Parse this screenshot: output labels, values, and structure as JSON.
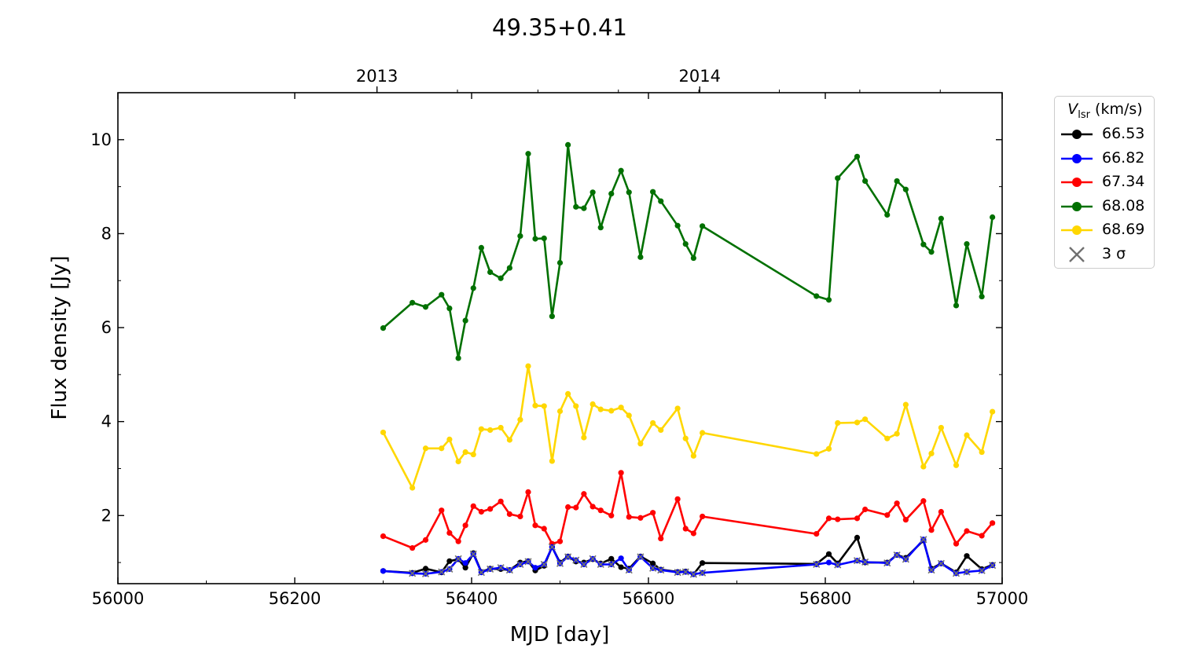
{
  "title": "49.35+0.41",
  "chart_data": {
    "type": "line",
    "title": "49.35+0.41",
    "xlabel": "MJD [day]",
    "ylabel": "Flux density [Jy]",
    "xlim": [
      56000,
      57000
    ],
    "ylim": [
      0.55,
      11.0
    ],
    "xticks": [
      56000,
      56200,
      56400,
      56600,
      56800,
      57000
    ],
    "yticks": [
      2,
      4,
      6,
      8,
      10
    ],
    "top_axis": {
      "ticks": [
        {
          "label": "2013",
          "mjd": 56293
        },
        {
          "label": "2014",
          "mjd": 56658
        }
      ]
    },
    "legend": {
      "title_main": "V",
      "title_sub": "lsr",
      "title_unit": " (km/s)",
      "position": "outside-right",
      "sigma_label": "3 σ"
    },
    "x": [
      56300,
      56333,
      56348,
      56366,
      56375,
      56385,
      56393,
      56402,
      56411,
      56421,
      56433,
      56443,
      56455,
      56464,
      56472,
      56482,
      56491,
      56500,
      56509,
      56518,
      56527,
      56537,
      56546,
      56558,
      56569,
      56578,
      56591,
      56605,
      56614,
      56633,
      56642,
      56651,
      56661,
      56790,
      56804,
      56814,
      56836,
      56845,
      56870,
      56881,
      56891,
      56911,
      56920,
      56931,
      56948,
      56960,
      56977,
      56989
    ],
    "series": [
      {
        "name": "66.53",
        "color": "#000000",
        "values": [
          0.82,
          0.78,
          0.87,
          0.79,
          1.03,
          1.07,
          0.89,
          1.2,
          0.8,
          0.87,
          0.86,
          0.84,
          1.0,
          1.03,
          0.83,
          0.93,
          1.33,
          1.0,
          1.13,
          1.02,
          1.0,
          1.07,
          0.98,
          1.08,
          0.9,
          0.87,
          1.13,
          0.98,
          0.85,
          0.8,
          0.81,
          0.75,
          0.99,
          0.97,
          1.18,
          0.98,
          1.53,
          1.0,
          1.0,
          1.16,
          1.1,
          1.47,
          0.87,
          0.98,
          0.79,
          1.14,
          0.86,
          0.95
        ]
      },
      {
        "name": "66.82",
        "color": "#0000ff",
        "values": [
          0.82,
          0.77,
          0.76,
          0.8,
          0.86,
          1.08,
          0.99,
          1.18,
          0.79,
          0.86,
          0.89,
          0.84,
          0.96,
          1.02,
          0.89,
          0.96,
          1.33,
          0.98,
          1.12,
          1.05,
          0.96,
          1.08,
          0.96,
          0.96,
          1.09,
          0.84,
          1.12,
          0.88,
          0.84,
          0.79,
          0.8,
          0.75,
          0.78,
          0.96,
          1.0,
          0.95,
          1.04,
          1.01,
          0.99,
          1.16,
          1.07,
          1.49,
          0.84,
          0.98,
          0.77,
          0.8,
          0.83,
          0.94
        ]
      },
      {
        "name": "67.34",
        "color": "#ff0000",
        "values": [
          1.56,
          1.31,
          1.48,
          2.11,
          1.63,
          1.45,
          1.79,
          2.2,
          2.08,
          2.14,
          2.3,
          2.03,
          1.98,
          2.5,
          1.79,
          1.72,
          1.4,
          1.45,
          2.18,
          2.17,
          2.46,
          2.19,
          2.11,
          2.0,
          2.91,
          1.97,
          1.95,
          2.06,
          1.51,
          2.35,
          1.72,
          1.62,
          1.98,
          1.61,
          1.94,
          1.92,
          1.94,
          2.13,
          2.01,
          2.26,
          1.91,
          2.31,
          1.69,
          2.08,
          1.4,
          1.67,
          1.57,
          1.84
        ]
      },
      {
        "name": "68.08",
        "color": "#007000",
        "values": [
          5.99,
          6.53,
          6.44,
          6.7,
          6.41,
          5.35,
          6.15,
          6.84,
          7.7,
          7.18,
          7.05,
          7.27,
          7.95,
          9.7,
          7.89,
          7.9,
          6.24,
          7.38,
          9.89,
          8.57,
          8.54,
          8.88,
          8.13,
          8.85,
          9.34,
          8.88,
          7.5,
          8.89,
          8.69,
          8.17,
          7.78,
          7.48,
          8.16,
          6.67,
          6.59,
          9.18,
          9.64,
          9.12,
          8.4,
          9.12,
          8.94,
          7.77,
          7.61,
          8.32,
          6.47,
          7.78,
          6.66,
          8.35
        ]
      },
      {
        "name": "68.69",
        "color": "#ffd700",
        "values": [
          3.77,
          2.59,
          3.43,
          3.43,
          3.62,
          3.15,
          3.35,
          3.3,
          3.84,
          3.82,
          3.87,
          3.61,
          4.04,
          5.18,
          4.34,
          4.33,
          3.16,
          4.22,
          4.59,
          4.33,
          3.66,
          4.37,
          4.26,
          4.23,
          4.3,
          4.13,
          3.53,
          3.97,
          3.82,
          4.28,
          3.64,
          3.27,
          3.76,
          3.31,
          3.42,
          3.97,
          3.98,
          4.05,
          3.64,
          3.74,
          4.36,
          3.04,
          3.32,
          3.87,
          3.07,
          3.71,
          3.35,
          4.21
        ]
      }
    ],
    "sigma_points": [
      {
        "x": 56333,
        "y": 0.77
      },
      {
        "x": 56348,
        "y": 0.76
      },
      {
        "x": 56366,
        "y": 0.8
      },
      {
        "x": 56375,
        "y": 0.86
      },
      {
        "x": 56385,
        "y": 1.08
      },
      {
        "x": 56402,
        "y": 1.18
      },
      {
        "x": 56411,
        "y": 0.79
      },
      {
        "x": 56421,
        "y": 0.86
      },
      {
        "x": 56433,
        "y": 0.89
      },
      {
        "x": 56443,
        "y": 0.84
      },
      {
        "x": 56455,
        "y": 0.96
      },
      {
        "x": 56464,
        "y": 1.02
      },
      {
        "x": 56482,
        "y": 0.96
      },
      {
        "x": 56491,
        "y": 1.33
      },
      {
        "x": 56500,
        "y": 0.98
      },
      {
        "x": 56509,
        "y": 1.12
      },
      {
        "x": 56518,
        "y": 1.05
      },
      {
        "x": 56527,
        "y": 0.96
      },
      {
        "x": 56537,
        "y": 1.08
      },
      {
        "x": 56546,
        "y": 0.96
      },
      {
        "x": 56558,
        "y": 0.96
      },
      {
        "x": 56578,
        "y": 0.84
      },
      {
        "x": 56591,
        "y": 1.12
      },
      {
        "x": 56605,
        "y": 0.88
      },
      {
        "x": 56614,
        "y": 0.84
      },
      {
        "x": 56633,
        "y": 0.79
      },
      {
        "x": 56642,
        "y": 0.8
      },
      {
        "x": 56651,
        "y": 0.75
      },
      {
        "x": 56661,
        "y": 0.78
      },
      {
        "x": 56790,
        "y": 0.96
      },
      {
        "x": 56814,
        "y": 0.95
      },
      {
        "x": 56836,
        "y": 1.04
      },
      {
        "x": 56845,
        "y": 1.01
      },
      {
        "x": 56870,
        "y": 0.99
      },
      {
        "x": 56881,
        "y": 1.16
      },
      {
        "x": 56891,
        "y": 1.07
      },
      {
        "x": 56911,
        "y": 1.49
      },
      {
        "x": 56920,
        "y": 0.84
      },
      {
        "x": 56931,
        "y": 0.98
      },
      {
        "x": 56948,
        "y": 0.77
      },
      {
        "x": 56960,
        "y": 0.8
      },
      {
        "x": 56977,
        "y": 0.83
      },
      {
        "x": 56989,
        "y": 0.94
      }
    ],
    "sigma_color": "#707070"
  }
}
